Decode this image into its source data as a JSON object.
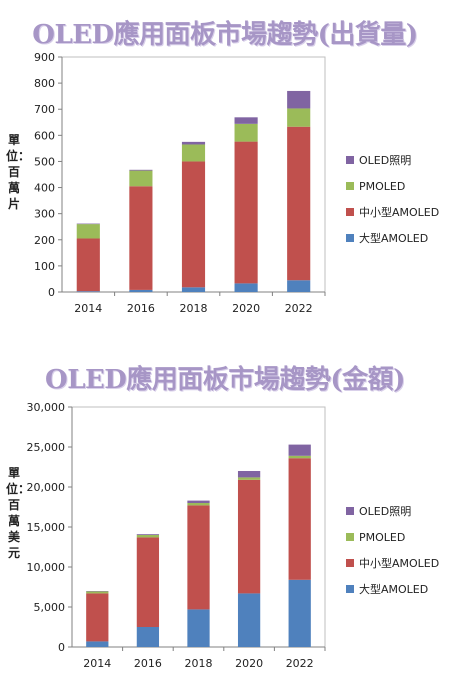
{
  "chart_data": [
    {
      "type": "bar",
      "stacked": true,
      "title": "OLED應用面板市場趨勢(出貨量)",
      "ylabel": "單位：百萬片",
      "categories": [
        "2014",
        "2016",
        "2018",
        "2020",
        "2022"
      ],
      "ylim": [
        0,
        900
      ],
      "yticks": [
        0,
        100,
        200,
        300,
        400,
        500,
        600,
        700,
        800,
        900
      ],
      "ytick_labels": [
        "0",
        "100",
        "200",
        "300",
        "400",
        "500",
        "600",
        "700",
        "800",
        "900"
      ],
      "series": [
        {
          "name": "大型AMOLED",
          "color": "#4f81bd",
          "values": [
            3,
            8,
            18,
            33,
            45
          ]
        },
        {
          "name": "中小型AMOLED",
          "color": "#c0504d",
          "values": [
            202,
            397,
            482,
            543,
            588
          ]
        },
        {
          "name": "PMOLED",
          "color": "#9bbb59",
          "values": [
            55,
            60,
            65,
            68,
            70
          ]
        },
        {
          "name": "OLED照明",
          "color": "#8064a2",
          "values": [
            2,
            3,
            10,
            25,
            67
          ]
        }
      ],
      "legend_position": "right",
      "grid": false
    },
    {
      "type": "bar",
      "stacked": true,
      "title": "OLED應用面板市場趨勢(金額)",
      "ylabel": "單位：百萬美元",
      "categories": [
        "2014",
        "2016",
        "2018",
        "2020",
        "2022"
      ],
      "ylim": [
        0,
        30000
      ],
      "yticks": [
        0,
        5000,
        10000,
        15000,
        20000,
        25000,
        30000
      ],
      "ytick_labels": [
        "0",
        "5,000",
        "10,000",
        "15,000",
        "20,000",
        "25,000",
        "30,000"
      ],
      "series": [
        {
          "name": "大型AMOLED",
          "color": "#4f81bd",
          "values": [
            700,
            2500,
            4700,
            6700,
            8400
          ]
        },
        {
          "name": "中小型AMOLED",
          "color": "#c0504d",
          "values": [
            6000,
            11200,
            13000,
            14200,
            15200
          ]
        },
        {
          "name": "PMOLED",
          "color": "#9bbb59",
          "values": [
            250,
            300,
            300,
            300,
            300
          ]
        },
        {
          "name": "OLED照明",
          "color": "#8064a2",
          "values": [
            50,
            100,
            300,
            800,
            1400
          ]
        }
      ],
      "legend_position": "right",
      "grid": false
    }
  ]
}
